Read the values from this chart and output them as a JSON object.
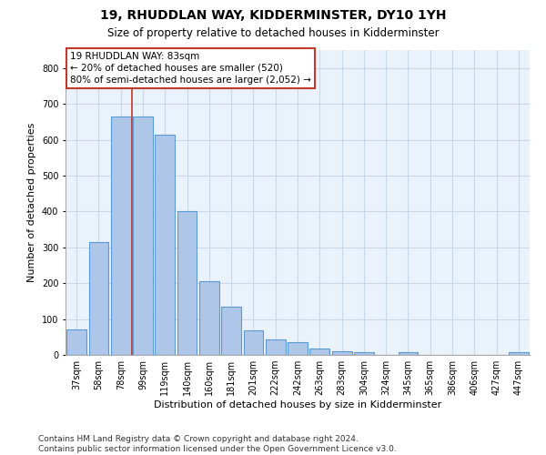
{
  "title1": "19, RHUDDLAN WAY, KIDDERMINSTER, DY10 1YH",
  "title2": "Size of property relative to detached houses in Kidderminster",
  "xlabel": "Distribution of detached houses by size in Kidderminster",
  "ylabel": "Number of detached properties",
  "categories": [
    "37sqm",
    "58sqm",
    "78sqm",
    "99sqm",
    "119sqm",
    "140sqm",
    "160sqm",
    "181sqm",
    "201sqm",
    "222sqm",
    "242sqm",
    "263sqm",
    "283sqm",
    "304sqm",
    "324sqm",
    "345sqm",
    "365sqm",
    "386sqm",
    "406sqm",
    "427sqm",
    "447sqm"
  ],
  "values": [
    70,
    315,
    665,
    665,
    615,
    400,
    205,
    135,
    68,
    43,
    35,
    18,
    10,
    8,
    0,
    8,
    0,
    0,
    0,
    0,
    8
  ],
  "bar_color": "#aec6e8",
  "bar_edge_color": "#5b9bd5",
  "bar_linewidth": 0.8,
  "vline_pos": 2.5,
  "vline_color": "#c0392b",
  "annotation_box_text": "19 RHUDDLAN WAY: 83sqm\n← 20% of detached houses are smaller (520)\n80% of semi-detached houses are larger (2,052) →",
  "annotation_box_color": "#c0392b",
  "ylim": [
    0,
    850
  ],
  "yticks": [
    0,
    100,
    200,
    300,
    400,
    500,
    600,
    700,
    800
  ],
  "grid_color": "#c8d8e8",
  "bg_color": "#eaf2fb",
  "footer": "Contains HM Land Registry data © Crown copyright and database right 2024.\nContains public sector information licensed under the Open Government Licence v3.0.",
  "title1_fontsize": 10,
  "title2_fontsize": 8.5,
  "xlabel_fontsize": 8,
  "ylabel_fontsize": 8,
  "tick_fontsize": 7,
  "footer_fontsize": 6.5,
  "annot_fontsize": 7.5
}
